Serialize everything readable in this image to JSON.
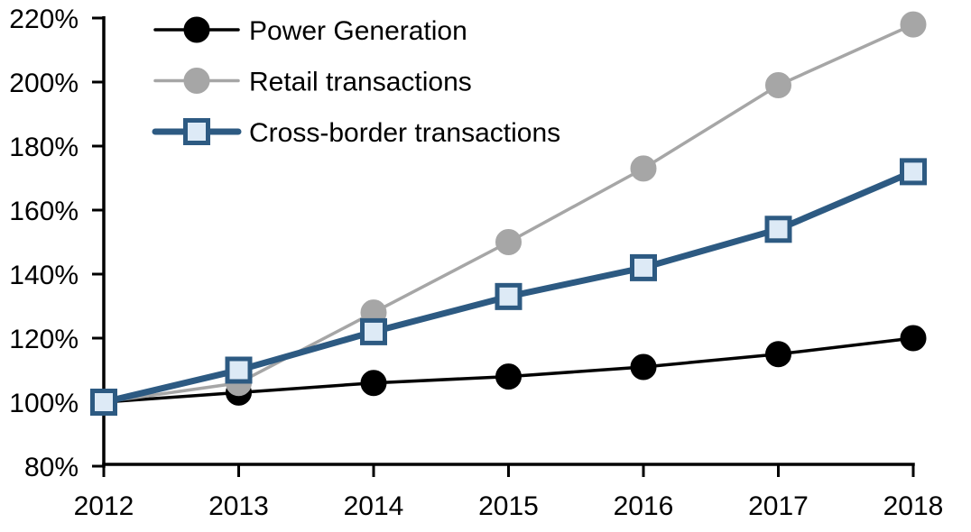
{
  "chart_data": {
    "type": "line",
    "x": [
      2012,
      2013,
      2014,
      2015,
      2016,
      2017,
      2018
    ],
    "xtick_labels": [
      "2012",
      "2013",
      "2014",
      "2015",
      "2016",
      "2017",
      "2018"
    ],
    "ylim": [
      80,
      220
    ],
    "ytick_step": 20,
    "ytick_labels": [
      "80%",
      "100%",
      "120%",
      "140%",
      "160%",
      "180%",
      "200%",
      "220%"
    ],
    "xlabel": "",
    "ylabel": "",
    "title": "",
    "grid": "off",
    "legend_position": "top-left-inside",
    "colors": {
      "background": "#FFFFFF",
      "axis": "#000000"
    },
    "series": [
      {
        "name": "Power Generation",
        "values": [
          100,
          103,
          106,
          108,
          111,
          115,
          120
        ],
        "color": "#000000",
        "line_width": 3.5,
        "marker": "circle",
        "marker_fill": "#000000",
        "marker_stroke": "#000000",
        "marker_size": 28
      },
      {
        "name": "Retail transactions",
        "values": [
          100,
          106,
          128,
          150,
          173,
          199,
          218
        ],
        "color": "#A6A6A6",
        "line_width": 3.5,
        "marker": "circle",
        "marker_fill": "#A6A6A6",
        "marker_stroke": "#A6A6A6",
        "marker_size": 28
      },
      {
        "name": "Cross-border transactions",
        "values": [
          100,
          110,
          122,
          133,
          142,
          154,
          172
        ],
        "color": "#2D5A82",
        "line_width": 7,
        "marker": "square",
        "marker_fill": "#DDEAF6",
        "marker_stroke": "#2D5A82",
        "marker_size": 30
      }
    ]
  }
}
